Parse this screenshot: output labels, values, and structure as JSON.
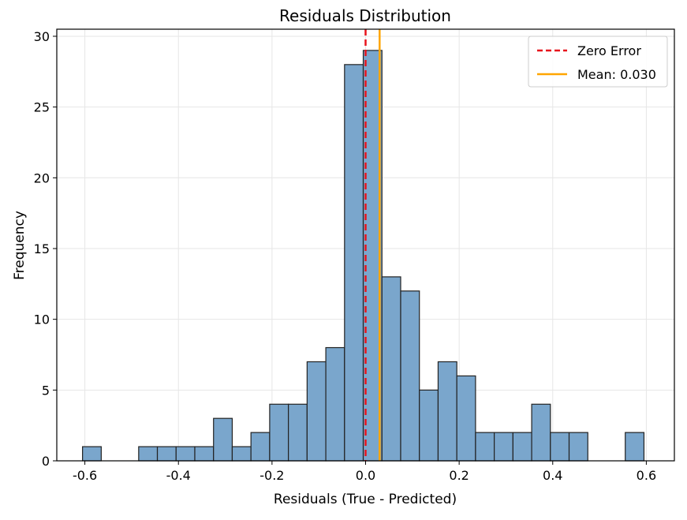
{
  "chart_data": {
    "type": "histogram",
    "title": "Residuals Distribution",
    "xlabel": "Residuals (True - Predicted)",
    "ylabel": "Frequency",
    "xlim": [
      -0.66,
      0.66
    ],
    "ylim": [
      0,
      30.5
    ],
    "grid": true,
    "bar_color": "#7aa6cc",
    "bar_edge_color": "#222222",
    "bin_start": -0.605,
    "bin_width": 0.04,
    "counts": [
      1,
      0,
      0,
      1,
      1,
      1,
      1,
      3,
      1,
      2,
      4,
      4,
      7,
      8,
      28,
      29,
      13,
      12,
      5,
      7,
      6,
      2,
      2,
      2,
      4,
      2,
      2,
      0,
      0,
      2
    ],
    "x_ticks": [
      -0.6,
      -0.4,
      -0.2,
      0.0,
      0.2,
      0.4,
      0.6
    ],
    "x_tick_labels": [
      "-0.6",
      "-0.4",
      "-0.2",
      "0.0",
      "0.2",
      "0.4",
      "0.6"
    ],
    "y_ticks": [
      0,
      5,
      10,
      15,
      20,
      25,
      30
    ],
    "y_tick_labels": [
      "0",
      "5",
      "10",
      "15",
      "20",
      "25",
      "30"
    ],
    "lines": [
      {
        "name": "Zero Error",
        "x": 0.0,
        "color": "#e8141c",
        "style": "dashed"
      },
      {
        "name": "Mean: 0.030",
        "x": 0.03,
        "color": "#ffa500",
        "style": "solid"
      }
    ],
    "legend": {
      "position": "top-right",
      "entries": [
        "Zero Error",
        "Mean: 0.030"
      ]
    }
  }
}
